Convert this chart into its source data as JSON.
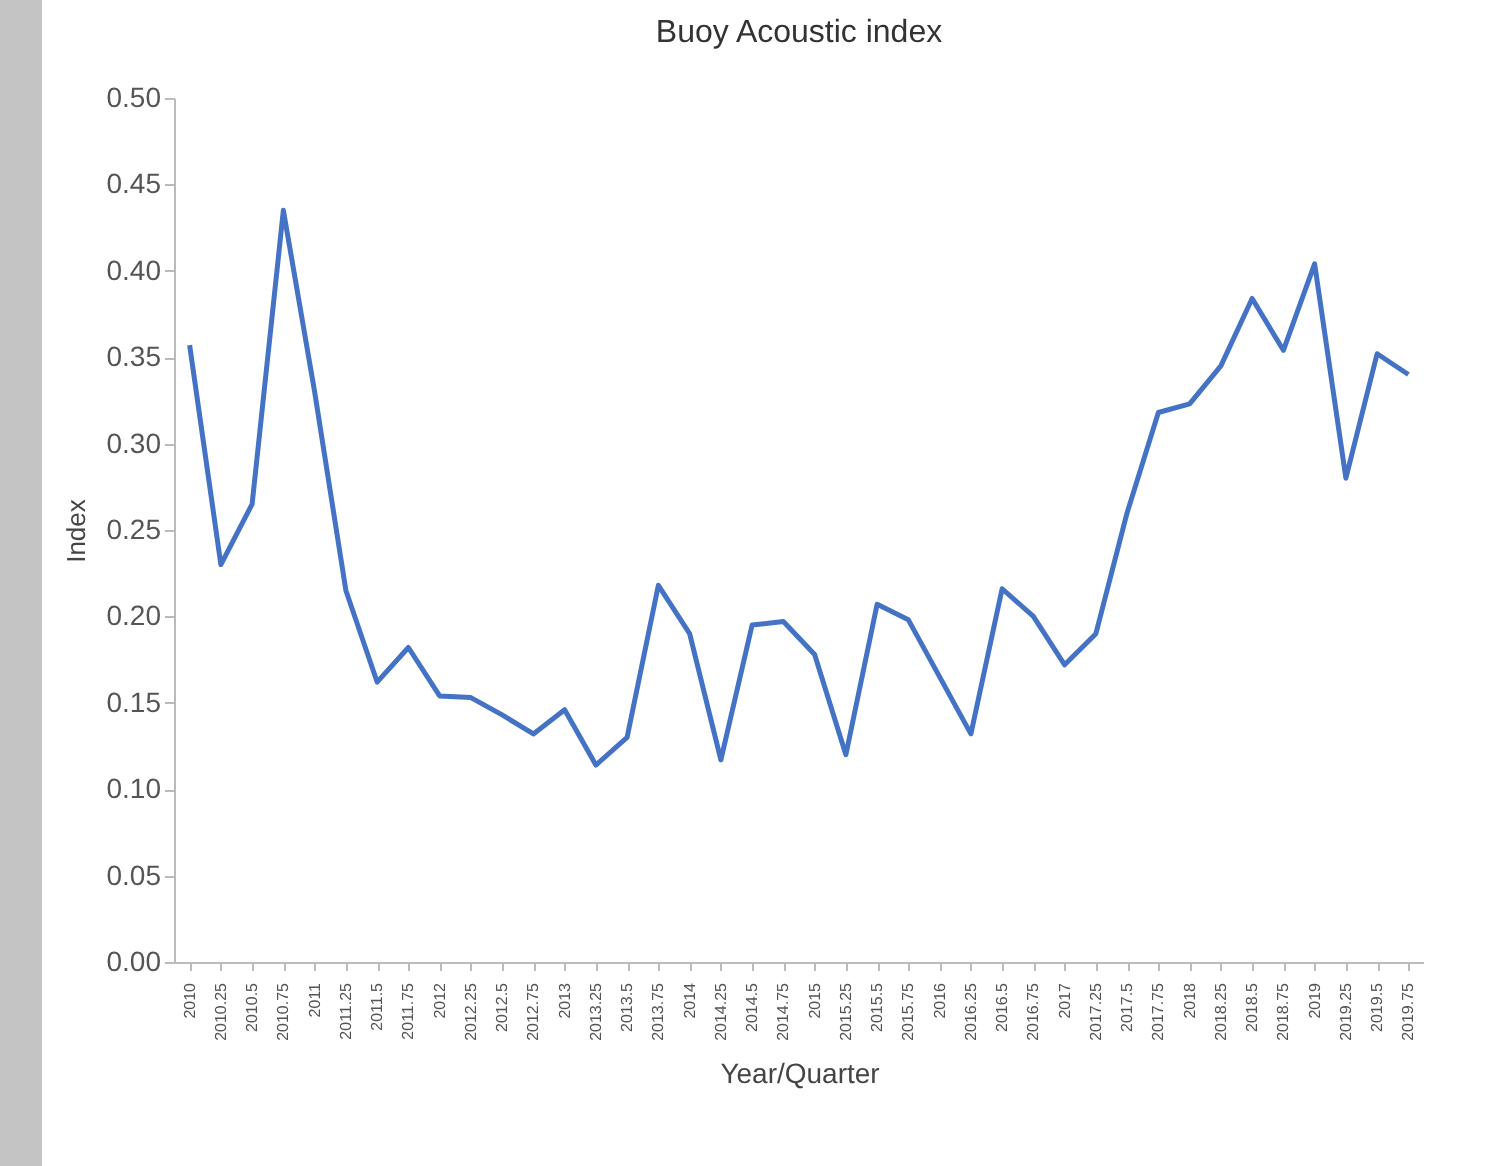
{
  "chart_data": {
    "type": "line",
    "title": "Buoy Acoustic index",
    "xlabel": "Year/Quarter",
    "ylabel": "Index",
    "categories": [
      "2010",
      "2010.25",
      "2010.5",
      "2010.75",
      "2011",
      "2011.25",
      "2011.5",
      "2011.75",
      "2012",
      "2012.25",
      "2012.5",
      "2012.75",
      "2013",
      "2013.25",
      "2013.5",
      "2013.75",
      "2014",
      "2014.25",
      "2014.5",
      "2014.75",
      "2015",
      "2015.25",
      "2015.5",
      "2015.75",
      "2016",
      "2016.25",
      "2016.5",
      "2016.75",
      "2017",
      "2017.25",
      "2017.5",
      "2017.75",
      "2018",
      "2018.25",
      "2018.5",
      "2018.75",
      "2019",
      "2019.25",
      "2019.5",
      "2019.75"
    ],
    "series": [
      {
        "color": "#4472c4",
        "values": [
          0.357,
          0.23,
          0.265,
          0.435,
          0.33,
          0.215,
          0.162,
          0.182,
          0.154,
          0.153,
          0.143,
          0.132,
          0.146,
          0.114,
          0.13,
          0.218,
          0.19,
          0.117,
          0.195,
          0.197,
          0.178,
          0.12,
          0.207,
          0.198,
          0.165,
          0.132,
          0.216,
          0.2,
          0.172,
          0.19,
          0.26,
          0.318,
          0.323,
          0.345,
          0.384,
          0.354,
          0.404,
          0.28,
          0.352,
          0.34
        ]
      }
    ],
    "ylim": [
      0,
      0.5
    ],
    "yticks": [
      {
        "value": 0,
        "label": "0.00"
      },
      0.05,
      {
        "value": 0.1,
        "label": "0.10"
      },
      0.15,
      {
        "value": 0.2,
        "label": "0.20"
      },
      0.25,
      {
        "value": 0.3,
        "label": "0.30"
      },
      0.35,
      {
        "value": 0.4,
        "label": "0.40"
      },
      0.45,
      {
        "value": 0.5,
        "label": "0.50"
      }
    ],
    "grid": false,
    "legend": false,
    "marker": "none",
    "line_style": "solid"
  }
}
